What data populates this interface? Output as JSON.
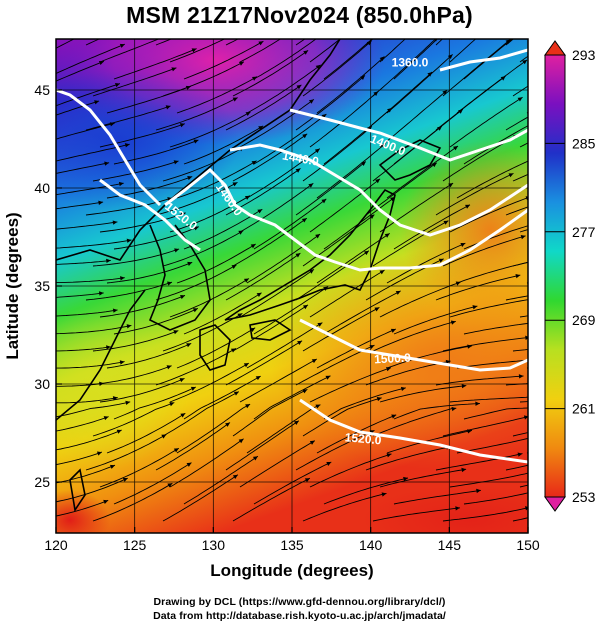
{
  "title": "MSM 21Z17Nov2024 (850.0hPa)",
  "map": {
    "x_axis": {
      "label": "Longitude (degrees)",
      "range": [
        120,
        150
      ],
      "ticks": [
        120,
        125,
        130,
        135,
        140,
        145,
        150
      ]
    },
    "y_axis": {
      "label": "Latitude (degrees)",
      "range": [
        22.4,
        47.6
      ],
      "ticks": [
        25,
        30,
        35,
        40,
        45
      ]
    },
    "grid": true,
    "shading_field": "temperature (K)",
    "overlays": [
      "geopotential height contours",
      "wind streamlines",
      "coastlines"
    ],
    "contour_labels": [
      "1360.0",
      "1400.0",
      "1440.0",
      "1460.0",
      "1520.0",
      "1500.0",
      "1520.0"
    ],
    "colors": {
      "contour": "#ffffff",
      "streamline": "#000000",
      "frame": "#000000"
    }
  },
  "colorbar": {
    "range": [
      253,
      293
    ],
    "tick_labels": [
      "293",
      "285",
      "277",
      "269",
      "261",
      "253"
    ],
    "palette": [
      "#e020a0",
      "#7a10c0",
      "#2030c8",
      "#1a90e0",
      "#10d8c8",
      "#30d830",
      "#b8e020",
      "#f0d010",
      "#f08a10",
      "#e82818"
    ]
  },
  "credits": {
    "line1": "Drawing by DCL (https://www.gfd-dennou.org/library/dcl/)",
    "line2": "Data from http://database.rish.kyoto-u.ac.jp/arch/jmadata/"
  }
}
